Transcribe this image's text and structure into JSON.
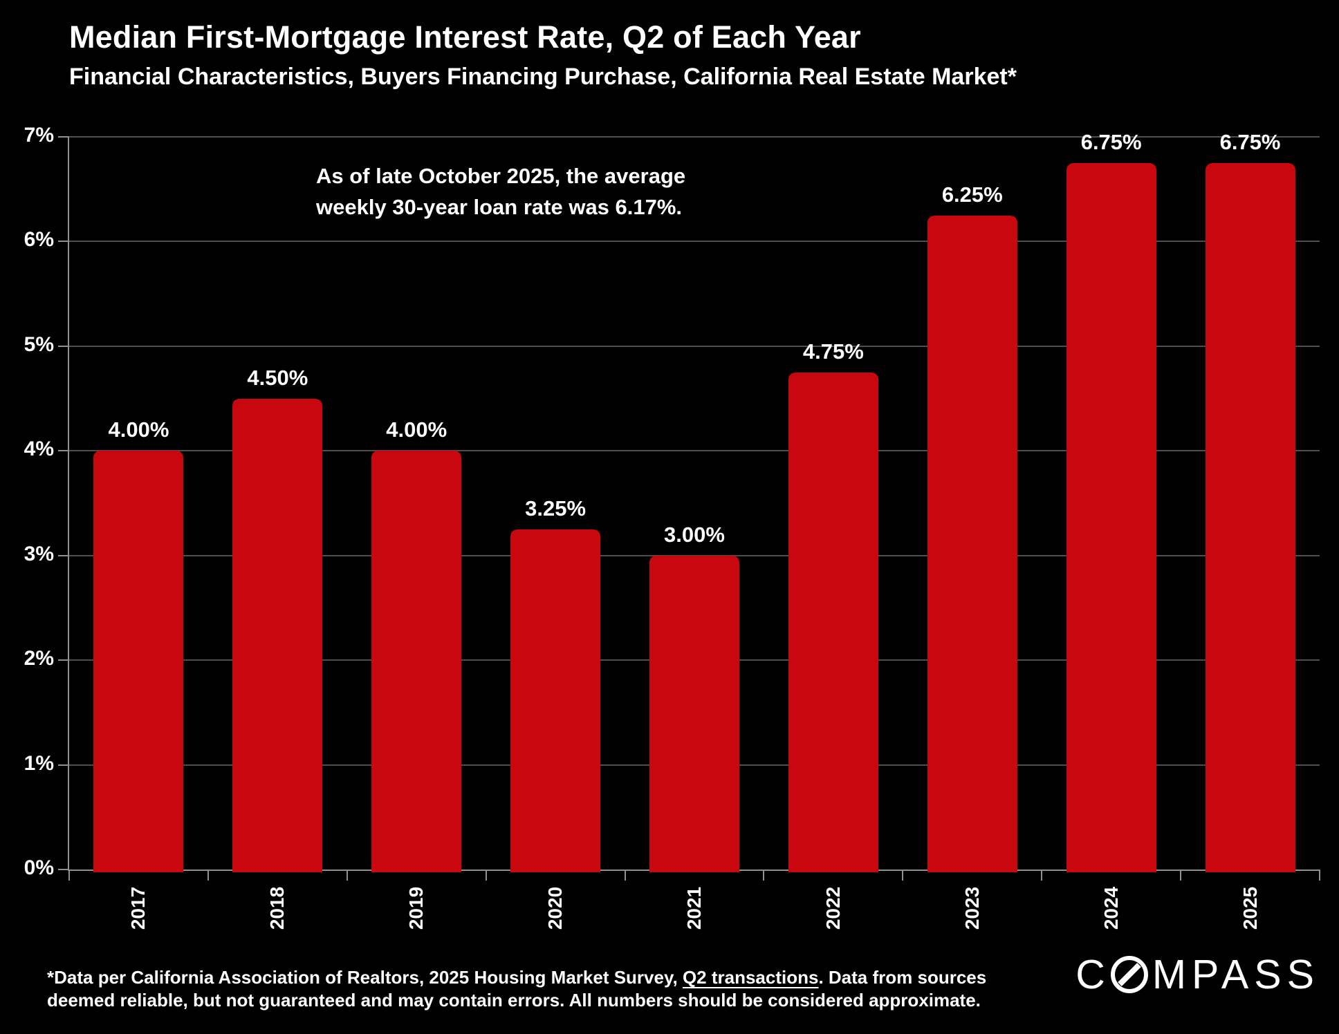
{
  "title": "Median First-Mortgage Interest Rate, Q2 of Each Year",
  "subtitle": "Financial Characteristics, Buyers Financing Purchase, California Real Estate Market*",
  "annotation": {
    "line1": "As of late October 2025, the average",
    "line2": "weekly 30-year loan rate was 6.17%."
  },
  "chart_data": {
    "type": "bar",
    "title": "Median First-Mortgage Interest Rate, Q2 of Each Year",
    "subtitle": "Financial Characteristics, Buyers Financing Purchase, California Real Estate Market*",
    "categories": [
      "2017",
      "2018",
      "2019",
      "2020",
      "2021",
      "2022",
      "2023",
      "2024",
      "2025"
    ],
    "values": [
      4.0,
      4.5,
      4.0,
      3.25,
      3.0,
      4.75,
      6.25,
      6.75,
      6.75
    ],
    "bar_labels": [
      "4.00%",
      "4.50%",
      "4.00%",
      "3.25%",
      "3.00%",
      "4.75%",
      "6.25%",
      "6.75%",
      "6.75%"
    ],
    "y_tick_labels": [
      "0%",
      "1%",
      "2%",
      "3%",
      "4%",
      "5%",
      "6%",
      "7%"
    ],
    "xlabel": "",
    "ylabel": "",
    "ylim": [
      0,
      7
    ],
    "grid": true,
    "legend_position": "none",
    "colors": {
      "bar": "#C9070E",
      "background": "#000000",
      "gridline": "#4E4E4E",
      "axis": "#909090",
      "text": "#FFFFFF"
    }
  },
  "footer": {
    "line1_pre": "*Data per California Association of Realtors, 2025 Housing Market Survey, ",
    "line1_underline": "Q2 transactions",
    "line1_post": ". Data from sources",
    "line2": "deemed reliable, but not guaranteed and may contain errors. All numbers should be considered approximate."
  },
  "logo": {
    "part1": "C",
    "part2": "MPASS"
  }
}
